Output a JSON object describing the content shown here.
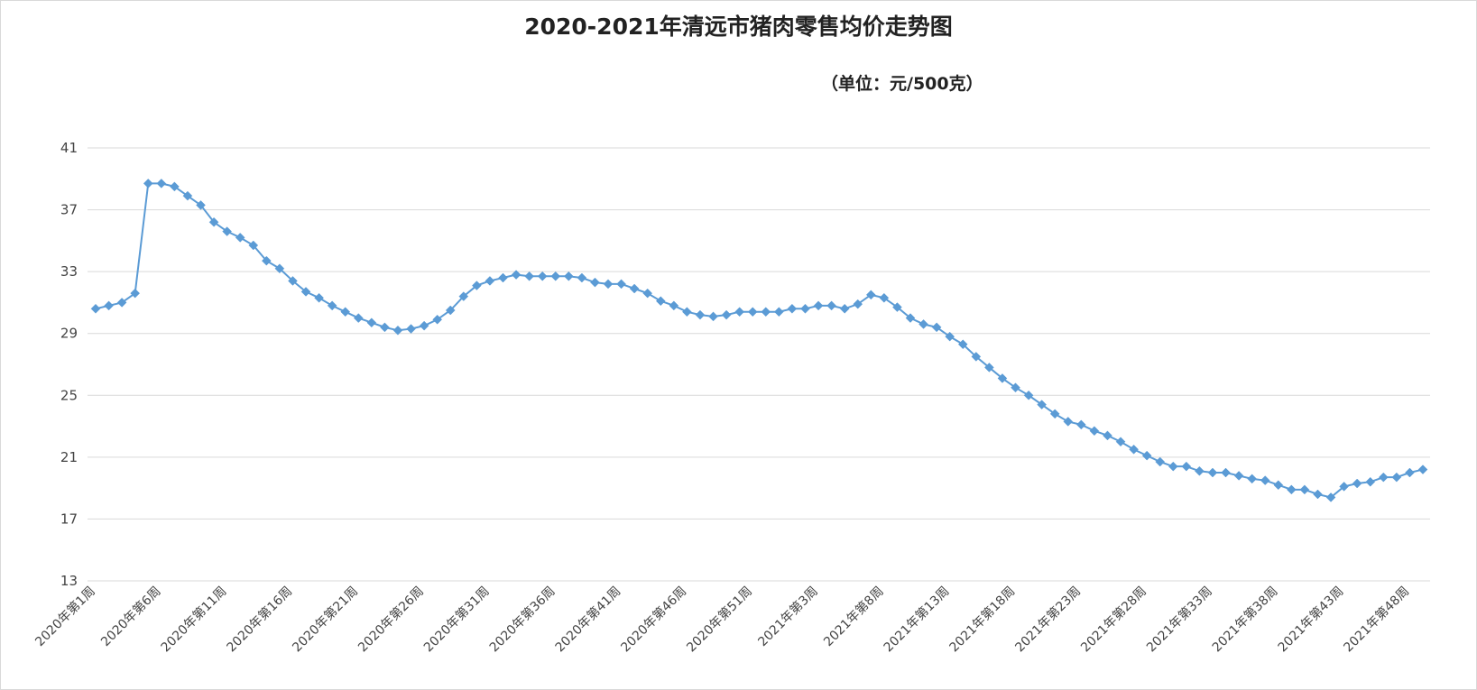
{
  "chart_data": {
    "type": "line",
    "title": "2020-2021年清远市猪肉零售均价走势图",
    "unit_label": "（单位：元/500克）",
    "xlabel": "",
    "ylabel": "",
    "ylim": [
      13,
      41
    ],
    "yticks": [
      13,
      17,
      21,
      25,
      29,
      33,
      37,
      41
    ],
    "grid": true,
    "color": "#5b9bd5",
    "x_tick_labels": [
      "2020年第1周",
      "2020年第6周",
      "2020年第11周",
      "2020年第16周",
      "2020年第21周",
      "2020年第26周",
      "2020年第31周",
      "2020年第36周",
      "2020年第41周",
      "2020年第46周",
      "2020年第51周",
      "2021年第3周",
      "2021年第8周",
      "2021年第13周",
      "2021年第18周",
      "2021年第23周",
      "2021年第28周",
      "2021年第33周",
      "2021年第38周",
      "2021年第43周",
      "2021年第48周"
    ],
    "x_tick_every": 5,
    "series": [
      {
        "values": [
          30.6,
          30.8,
          31.0,
          31.6,
          38.7,
          38.7,
          38.5,
          37.9,
          37.3,
          36.2,
          35.6,
          35.2,
          34.7,
          33.7,
          33.2,
          32.4,
          31.7,
          31.3,
          30.8,
          30.4,
          30.0,
          29.7,
          29.4,
          29.2,
          29.3,
          29.5,
          29.9,
          30.5,
          31.4,
          32.1,
          32.4,
          32.6,
          32.8,
          32.7,
          32.7,
          32.7,
          32.7,
          32.6,
          32.3,
          32.2,
          32.2,
          31.9,
          31.6,
          31.1,
          30.8,
          30.4,
          30.2,
          30.1,
          30.2,
          30.4,
          30.4,
          30.4,
          30.4,
          30.6,
          30.6,
          30.8,
          30.8,
          30.6,
          30.9,
          31.5,
          31.3,
          30.7,
          30.0,
          29.6,
          29.4,
          28.8,
          28.3,
          27.5,
          26.8,
          26.1,
          25.5,
          25.0,
          24.4,
          23.8,
          23.3,
          23.1,
          22.7,
          22.4,
          22.0,
          21.5,
          21.1,
          20.7,
          20.4,
          20.4,
          20.1,
          20.0,
          20.0,
          19.8,
          19.6,
          19.5,
          19.2,
          18.9,
          18.9,
          18.6,
          18.4,
          19.1,
          19.3,
          19.4,
          19.7,
          19.7,
          20.0,
          20.2
        ]
      }
    ]
  }
}
